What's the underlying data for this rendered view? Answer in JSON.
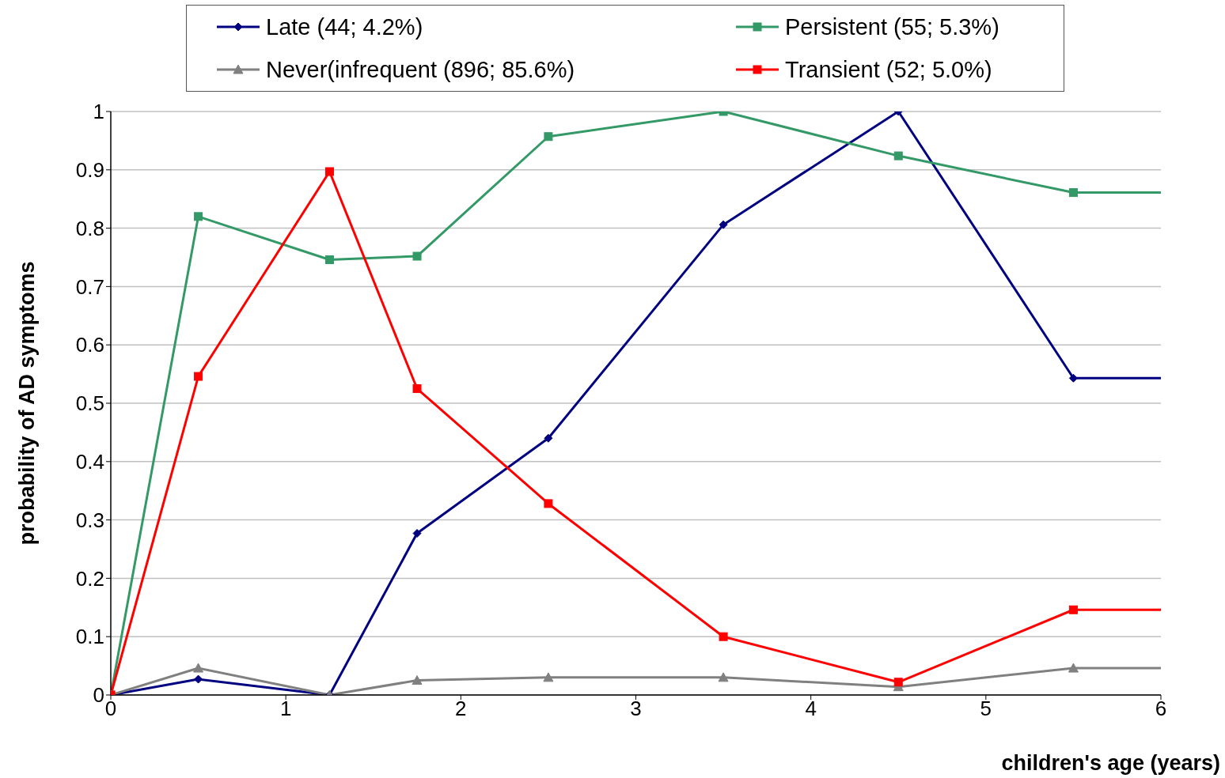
{
  "chart_data": {
    "type": "line",
    "xlabel": "children's age (years)",
    "ylabel": "probability of AD symptoms",
    "x": [
      0,
      0.5,
      1.25,
      1.75,
      2.5,
      3.5,
      4.5,
      5.5,
      6
    ],
    "series": [
      {
        "name": "Late (44; 4.2%)",
        "color": "#000080",
        "marker": "diamond",
        "values": [
          0,
          0.027,
          0,
          0.277,
          0.44,
          0.806,
          1.0,
          0.543,
          0.543
        ]
      },
      {
        "name": "Persistent (55; 5.3%)",
        "color": "#339966",
        "marker": "square",
        "values": [
          0,
          0.82,
          0.746,
          0.752,
          0.957,
          1.0,
          0.924,
          0.861,
          0.861
        ]
      },
      {
        "name": "Never(infrequent (896; 85.6%)",
        "color": "#808080",
        "marker": "triangle",
        "values": [
          0,
          0.046,
          0,
          0.025,
          0.03,
          0.03,
          0.014,
          0.046,
          0.046
        ]
      },
      {
        "name": "Transient (52; 5.0%)",
        "color": "#ff0000",
        "marker": "square",
        "values": [
          0,
          0.546,
          0.897,
          0.525,
          0.328,
          0.1,
          0.022,
          0.146,
          0.146
        ]
      }
    ],
    "xlim": [
      0,
      6
    ],
    "xticks": [
      0,
      1,
      2,
      3,
      4,
      5,
      6
    ],
    "ylim": [
      0,
      1
    ],
    "yticks": [
      0,
      0.1,
      0.2,
      0.3,
      0.4,
      0.5,
      0.6,
      0.7,
      0.8,
      0.9,
      1
    ],
    "grid": "y",
    "legend": "top",
    "line_style": "solid"
  }
}
